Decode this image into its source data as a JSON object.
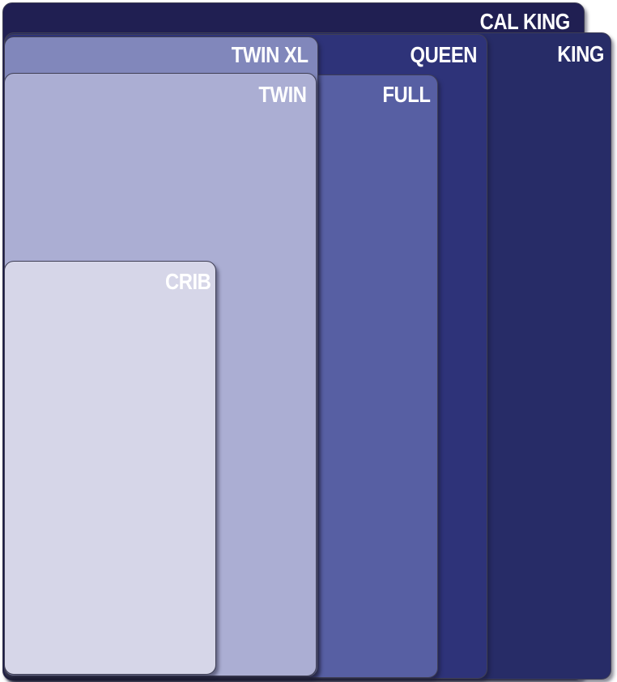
{
  "diagram": {
    "label_text_color": "#FFFFFF",
    "outline_color": "#3F3F55",
    "beds": [
      {
        "id": "cal-king",
        "label": "CAL KING",
        "color": "#201F52"
      },
      {
        "id": "king",
        "label": "KING",
        "color": "#272C67"
      },
      {
        "id": "queen",
        "label": "QUEEN",
        "color": "#2E3379"
      },
      {
        "id": "full",
        "label": "FULL",
        "color": "#575FA3"
      },
      {
        "id": "twin-xl",
        "label": "TWIN XL",
        "color": "#8187BB"
      },
      {
        "id": "twin",
        "label": "TWIN",
        "color": "#ABAED3"
      },
      {
        "id": "crib",
        "label": "CRIB",
        "color": "#D6D6E8"
      }
    ]
  }
}
